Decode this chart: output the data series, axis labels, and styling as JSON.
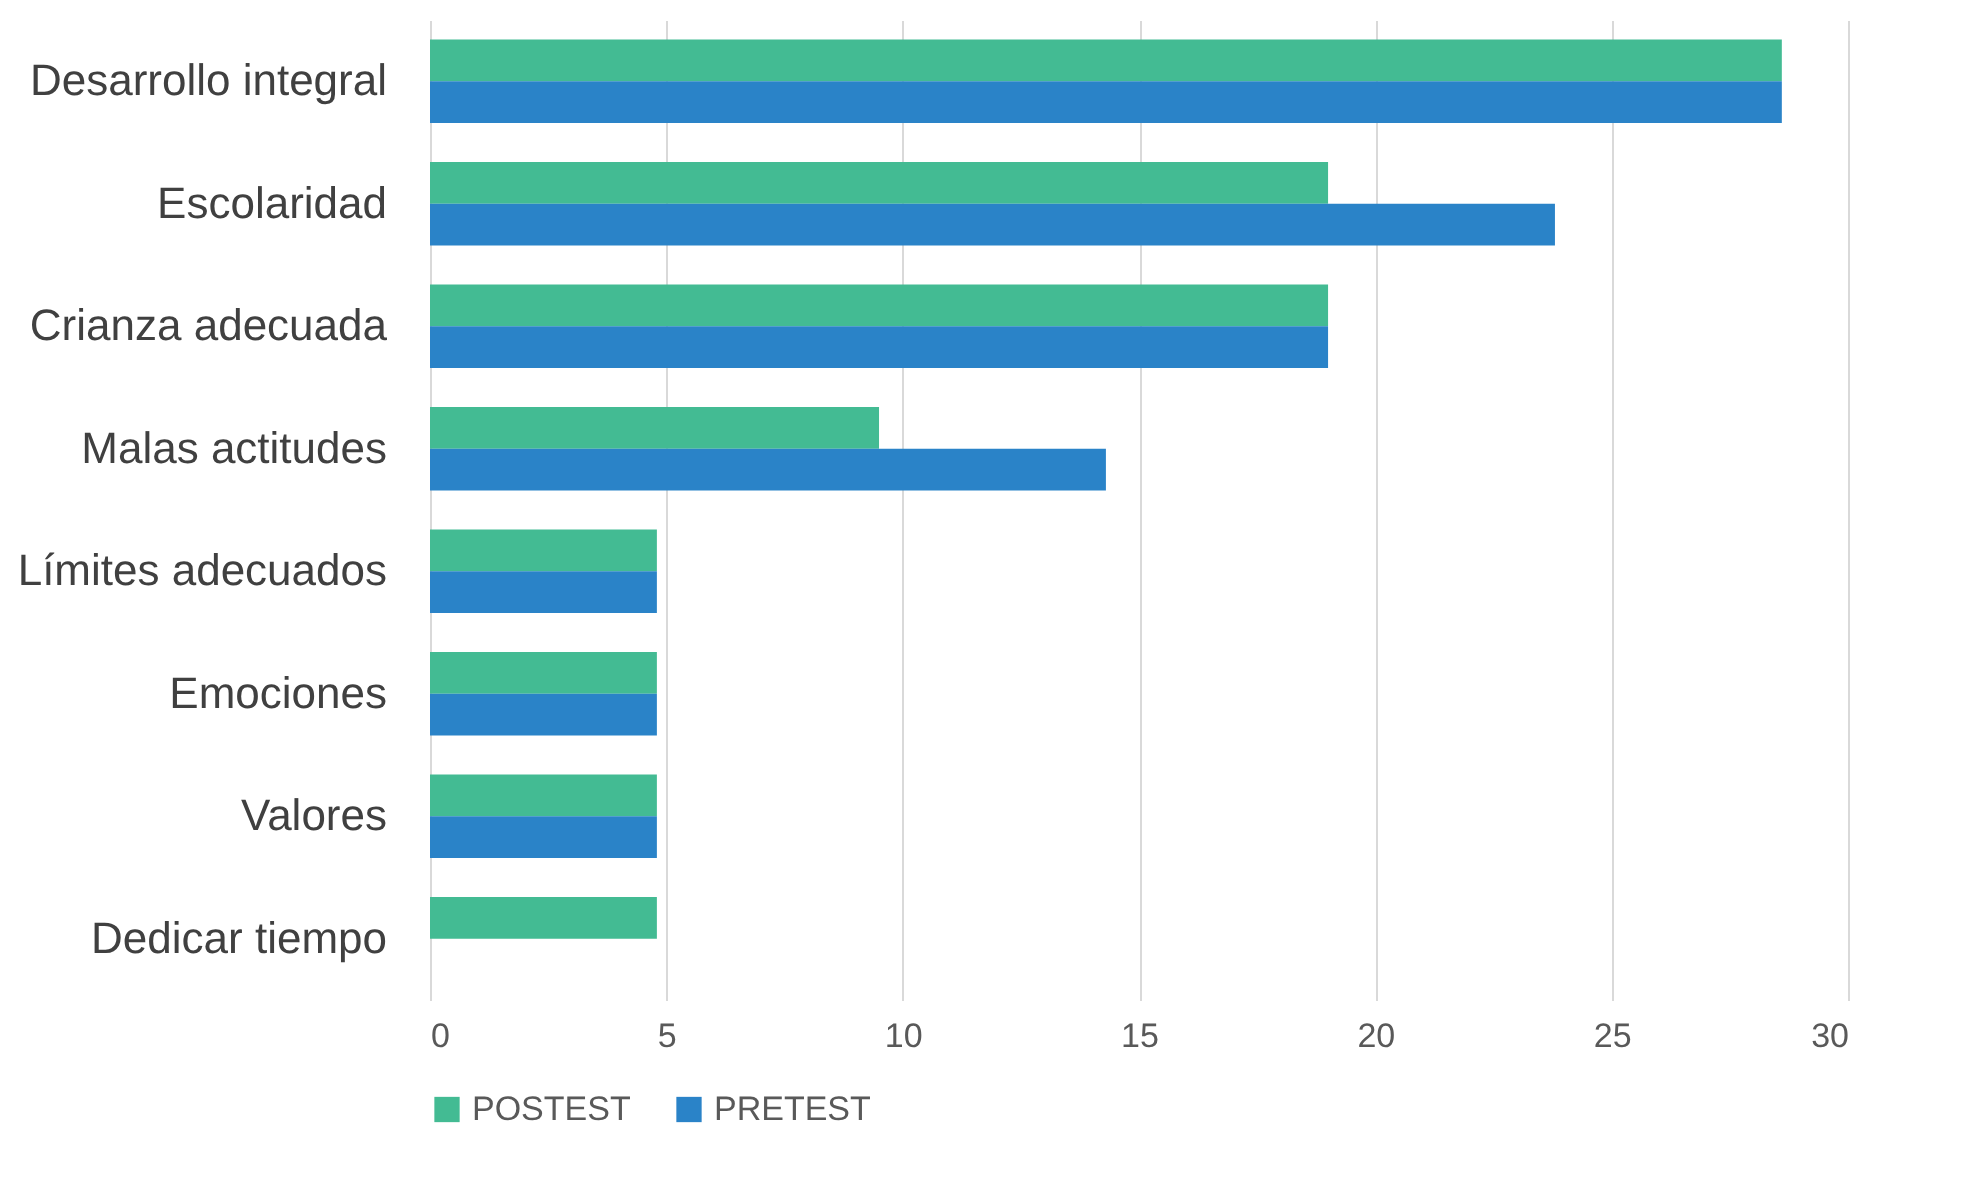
{
  "chart_data": {
    "type": "bar",
    "orientation": "horizontal",
    "categories": [
      "Desarrollo integral",
      "Escolaridad",
      "Crianza adecuada",
      "Malas actitudes",
      "Límites adecuados",
      "Emociones",
      "Valores",
      "Dedicar tiempo"
    ],
    "series": [
      {
        "name": "POSTEST",
        "color": "#43bb93",
        "values": [
          28.6,
          19.0,
          19.0,
          9.5,
          4.8,
          4.8,
          4.8,
          4.8
        ]
      },
      {
        "name": "PRETEST",
        "color": "#2a83c8",
        "values": [
          28.6,
          23.8,
          19.0,
          14.3,
          4.8,
          4.8,
          4.8,
          null
        ]
      }
    ],
    "xlim": [
      0,
      30
    ],
    "xticks": [
      0,
      5,
      10,
      15,
      20,
      25,
      30
    ],
    "grid": "x",
    "legend": "bottom"
  }
}
